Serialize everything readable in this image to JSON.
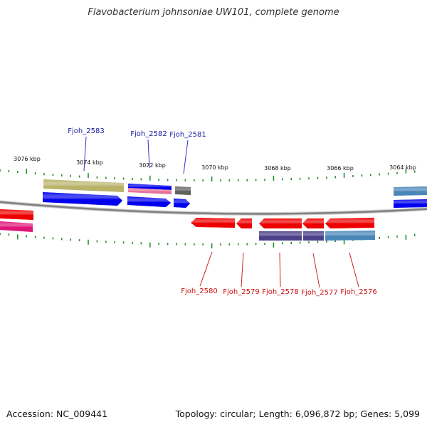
{
  "title": "Flavobacterium johnsoniae UW101, complete genome",
  "footer": {
    "accession": "Accession: NC_009441",
    "topology": "Topology: circular; Length: 6,096,872 bp; Genes: 5,099"
  },
  "colors": {
    "backbone": "#808080",
    "tick": "#2e8b2e",
    "scale_label": "#111111",
    "forward_label": "#1a1aa0",
    "reverse_label": "#cc1111",
    "callout": "#3333cc",
    "callout_reverse": "#cc2222",
    "forward_cds": "#0000ee",
    "reverse_cds": "#ee0000",
    "olive": "#b9b26a",
    "pink": "#e8719a",
    "magenta": "#e0157a",
    "gray": "#606060",
    "purple": "#4b3f87",
    "steel": "#4a86b8"
  },
  "scale_labels": [
    "3076 kbp",
    "3074 kbp",
    "3072 kbp",
    "3070 kbp",
    "3068 kbp",
    "3066 kbp",
    "3064 kbp"
  ],
  "gene_labels": {
    "top": [
      "Fjoh_2583",
      "Fjoh_2582",
      "Fjoh_2581"
    ],
    "bottom": [
      "Fjoh_2580",
      "Fjoh_2579",
      "Fjoh_2578",
      "Fjoh_2577",
      "Fjoh_2576"
    ]
  }
}
